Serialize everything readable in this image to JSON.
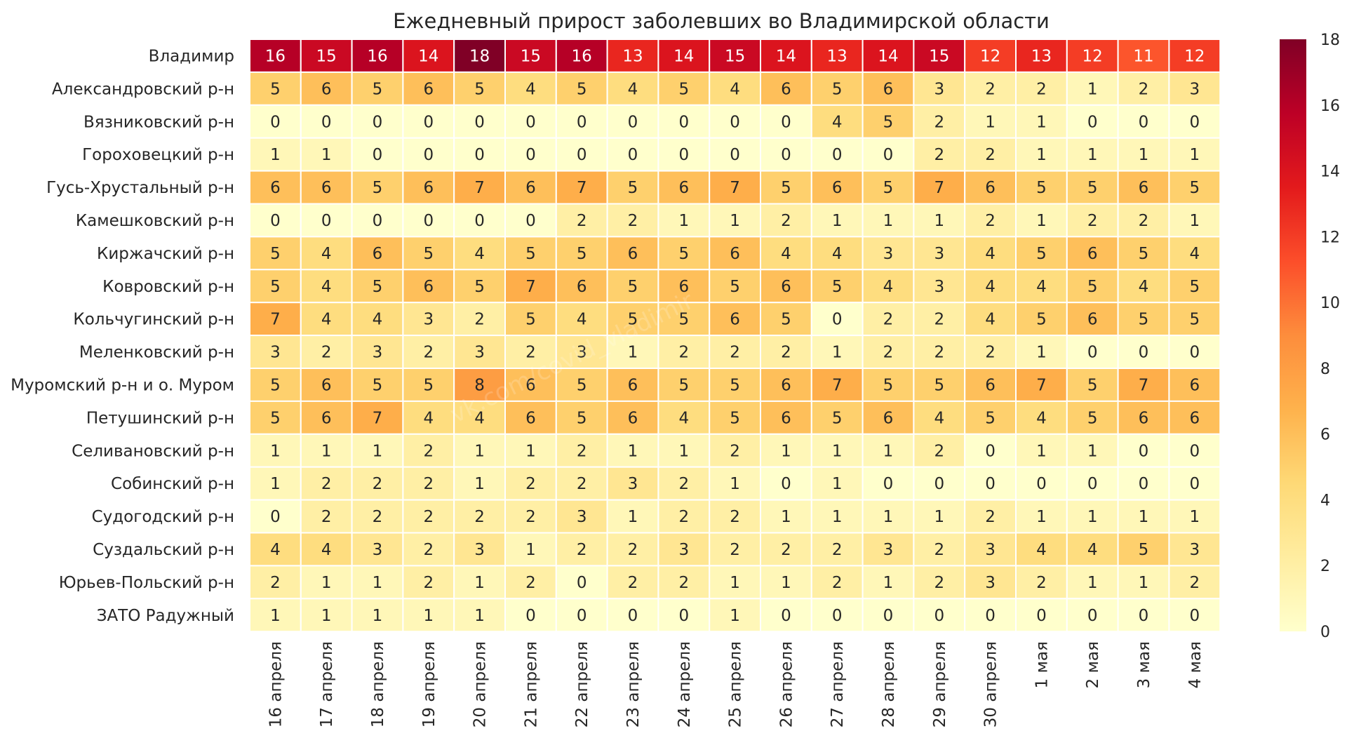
{
  "chart_data": {
    "type": "heatmap",
    "title": "Ежедневный прирост заболевших во Владимирской области",
    "columns": [
      "16 апреля",
      "17 апреля",
      "18 апреля",
      "19 апреля",
      "20 апреля",
      "21 апреля",
      "22 апреля",
      "23 апреля",
      "24 апреля",
      "25 апреля",
      "26 апреля",
      "27 апреля",
      "28 апреля",
      "29 апреля",
      "30 апреля",
      "1 мая",
      "2 мая",
      "3 мая",
      "4 мая"
    ],
    "rows": [
      "Владимир",
      "Александровский р-н",
      "Вязниковский р-н",
      "Гороховецкий р-н",
      "Гусь-Хрустальный р-н",
      "Камешковский р-н",
      "Киржачский р-н",
      "Ковровский р-н",
      "Кольчугинский р-н",
      "Меленковский р-н",
      "Муромский р-н и о. Муром",
      "Петушинский р-н",
      "Селивановский р-н",
      "Собинский р-н",
      "Судогодский р-н",
      "Суздальский р-н",
      "Юрьев-Польский р-н",
      "ЗАТО Радужный"
    ],
    "values": [
      [
        16,
        15,
        16,
        14,
        18,
        15,
        16,
        13,
        14,
        15,
        14,
        13,
        14,
        15,
        12,
        13,
        12,
        11,
        12
      ],
      [
        5,
        6,
        5,
        6,
        5,
        4,
        5,
        4,
        5,
        4,
        6,
        5,
        6,
        3,
        2,
        2,
        1,
        2,
        3
      ],
      [
        0,
        0,
        0,
        0,
        0,
        0,
        0,
        0,
        0,
        0,
        0,
        4,
        5,
        2,
        1,
        1,
        0,
        0,
        0
      ],
      [
        1,
        1,
        0,
        0,
        0,
        0,
        0,
        0,
        0,
        0,
        0,
        0,
        0,
        2,
        2,
        1,
        1,
        1,
        1
      ],
      [
        6,
        6,
        5,
        6,
        7,
        6,
        7,
        5,
        6,
        7,
        5,
        6,
        5,
        7,
        6,
        5,
        5,
        6,
        5
      ],
      [
        0,
        0,
        0,
        0,
        0,
        0,
        2,
        2,
        1,
        1,
        2,
        1,
        1,
        1,
        2,
        1,
        2,
        2,
        1
      ],
      [
        5,
        4,
        6,
        5,
        4,
        5,
        5,
        6,
        5,
        6,
        4,
        4,
        3,
        3,
        4,
        5,
        6,
        5,
        4
      ],
      [
        5,
        4,
        5,
        6,
        5,
        7,
        6,
        5,
        6,
        5,
        6,
        5,
        4,
        3,
        4,
        4,
        5,
        4,
        5
      ],
      [
        7,
        4,
        4,
        3,
        2,
        5,
        4,
        5,
        5,
        6,
        5,
        0,
        2,
        2,
        4,
        5,
        6,
        5,
        5
      ],
      [
        3,
        2,
        3,
        2,
        3,
        2,
        3,
        1,
        2,
        2,
        2,
        1,
        2,
        2,
        2,
        1,
        0,
        0,
        0
      ],
      [
        5,
        6,
        5,
        5,
        8,
        6,
        5,
        6,
        5,
        5,
        6,
        7,
        5,
        5,
        6,
        7,
        5,
        7,
        6
      ],
      [
        5,
        6,
        7,
        4,
        4,
        6,
        5,
        6,
        4,
        5,
        6,
        5,
        6,
        4,
        5,
        4,
        5,
        6,
        6
      ],
      [
        1,
        1,
        1,
        2,
        1,
        1,
        2,
        1,
        1,
        2,
        1,
        1,
        1,
        2,
        0,
        1,
        1,
        0,
        0
      ],
      [
        1,
        2,
        2,
        2,
        1,
        2,
        2,
        3,
        2,
        1,
        0,
        1,
        0,
        0,
        0,
        0,
        0,
        0,
        0
      ],
      [
        0,
        2,
        2,
        2,
        2,
        2,
        3,
        1,
        2,
        2,
        1,
        1,
        1,
        1,
        2,
        1,
        1,
        1,
        1
      ],
      [
        4,
        4,
        3,
        2,
        3,
        1,
        2,
        2,
        3,
        2,
        2,
        2,
        3,
        2,
        3,
        4,
        4,
        5,
        3
      ],
      [
        2,
        1,
        1,
        2,
        1,
        2,
        0,
        2,
        2,
        1,
        1,
        2,
        1,
        2,
        3,
        2,
        1,
        1,
        2
      ],
      [
        1,
        1,
        1,
        1,
        1,
        0,
        0,
        0,
        0,
        1,
        0,
        0,
        0,
        0,
        0,
        0,
        0,
        0,
        0
      ]
    ],
    "vmin": 0,
    "vmax": 18,
    "colorbar_ticks": [
      0,
      2,
      4,
      6,
      8,
      10,
      12,
      14,
      16,
      18
    ],
    "colormap": "YlOrRd",
    "colormap_stops": [
      "#ffffcc",
      "#ffeda0",
      "#fed976",
      "#feb24c",
      "#fd8d3c",
      "#fc4e2a",
      "#e31a1c",
      "#bd0026",
      "#800026"
    ],
    "cell_border_color": "#ffffff",
    "annotation_dark_text": "#262626",
    "annotation_light_text": "#ffffff",
    "watermark": "vk.com/covid_vladimir"
  }
}
